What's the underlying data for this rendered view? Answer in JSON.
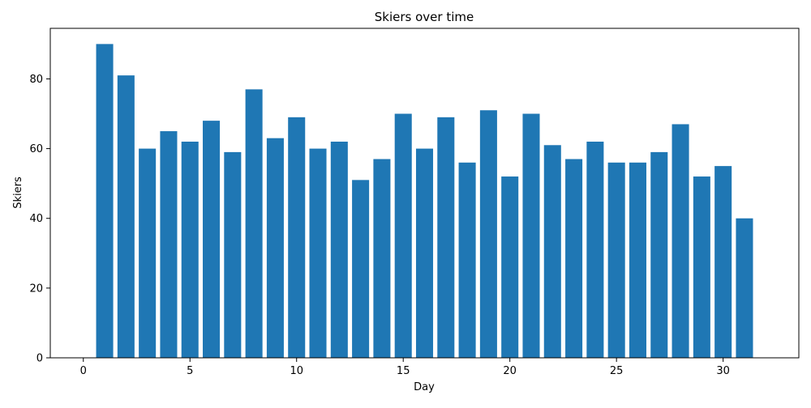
{
  "chart_data": {
    "type": "bar",
    "title": "Skiers over time",
    "xlabel": "Day",
    "ylabel": "Skiers",
    "x": [
      1,
      2,
      3,
      4,
      5,
      6,
      7,
      8,
      9,
      10,
      11,
      12,
      13,
      14,
      15,
      16,
      17,
      18,
      19,
      20,
      21,
      22,
      23,
      24,
      25,
      26,
      27,
      28,
      29,
      30,
      31
    ],
    "values": [
      90,
      81,
      60,
      65,
      62,
      68,
      59,
      77,
      63,
      69,
      60,
      62,
      51,
      57,
      70,
      60,
      69,
      56,
      71,
      52,
      70,
      61,
      57,
      62,
      56,
      56,
      59,
      67,
      52,
      55,
      40
    ],
    "xlim": [
      -1.55,
      33.55
    ],
    "ylim": [
      0,
      94.5
    ],
    "xticks": [
      "0",
      "5",
      "10",
      "15",
      "20",
      "25",
      "30"
    ],
    "yticks": [
      "0",
      "20",
      "40",
      "60",
      "80"
    ],
    "bar_color": "#1f77b4",
    "grid": false,
    "legend": "none"
  }
}
